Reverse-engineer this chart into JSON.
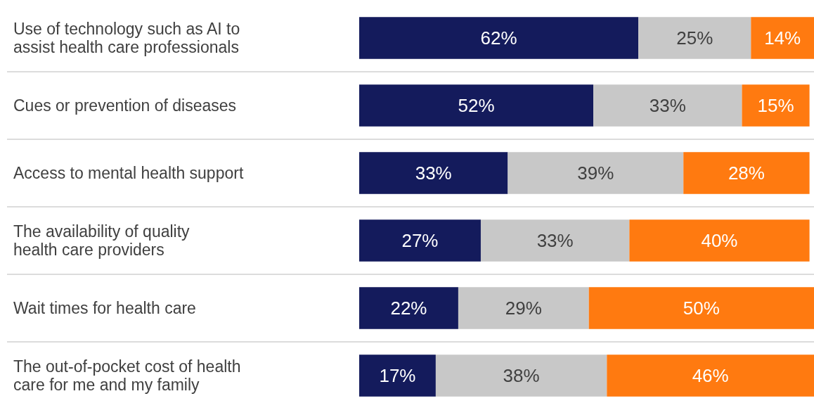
{
  "chart_data": {
    "type": "bar",
    "orientation": "horizontal",
    "stacked": true,
    "categories": [
      "Use of technology such as AI to assist health care professionals",
      "Cues or prevention of diseases",
      "Access to mental health support",
      "The availability of quality health care providers",
      "Wait times for health care",
      "The out-of-pocket cost of health care for me and my family"
    ],
    "series": [
      {
        "color": "#141b5c",
        "values": [
          62,
          52,
          33,
          27,
          22,
          17
        ],
        "value_labels": [
          "62%",
          "52%",
          "33%",
          "27%",
          "22%",
          "17%"
        ]
      },
      {
        "color": "#c8c8c8",
        "values": [
          25,
          33,
          39,
          33,
          29,
          38
        ],
        "value_labels": [
          "25%",
          "33%",
          "39%",
          "33%",
          "29%",
          "38%"
        ]
      },
      {
        "color": "#ff7a10",
        "values": [
          14,
          15,
          28,
          40,
          50,
          46
        ],
        "value_labels": [
          "14%",
          "15%",
          "28%",
          "40%",
          "50%",
          "46%"
        ]
      }
    ]
  }
}
